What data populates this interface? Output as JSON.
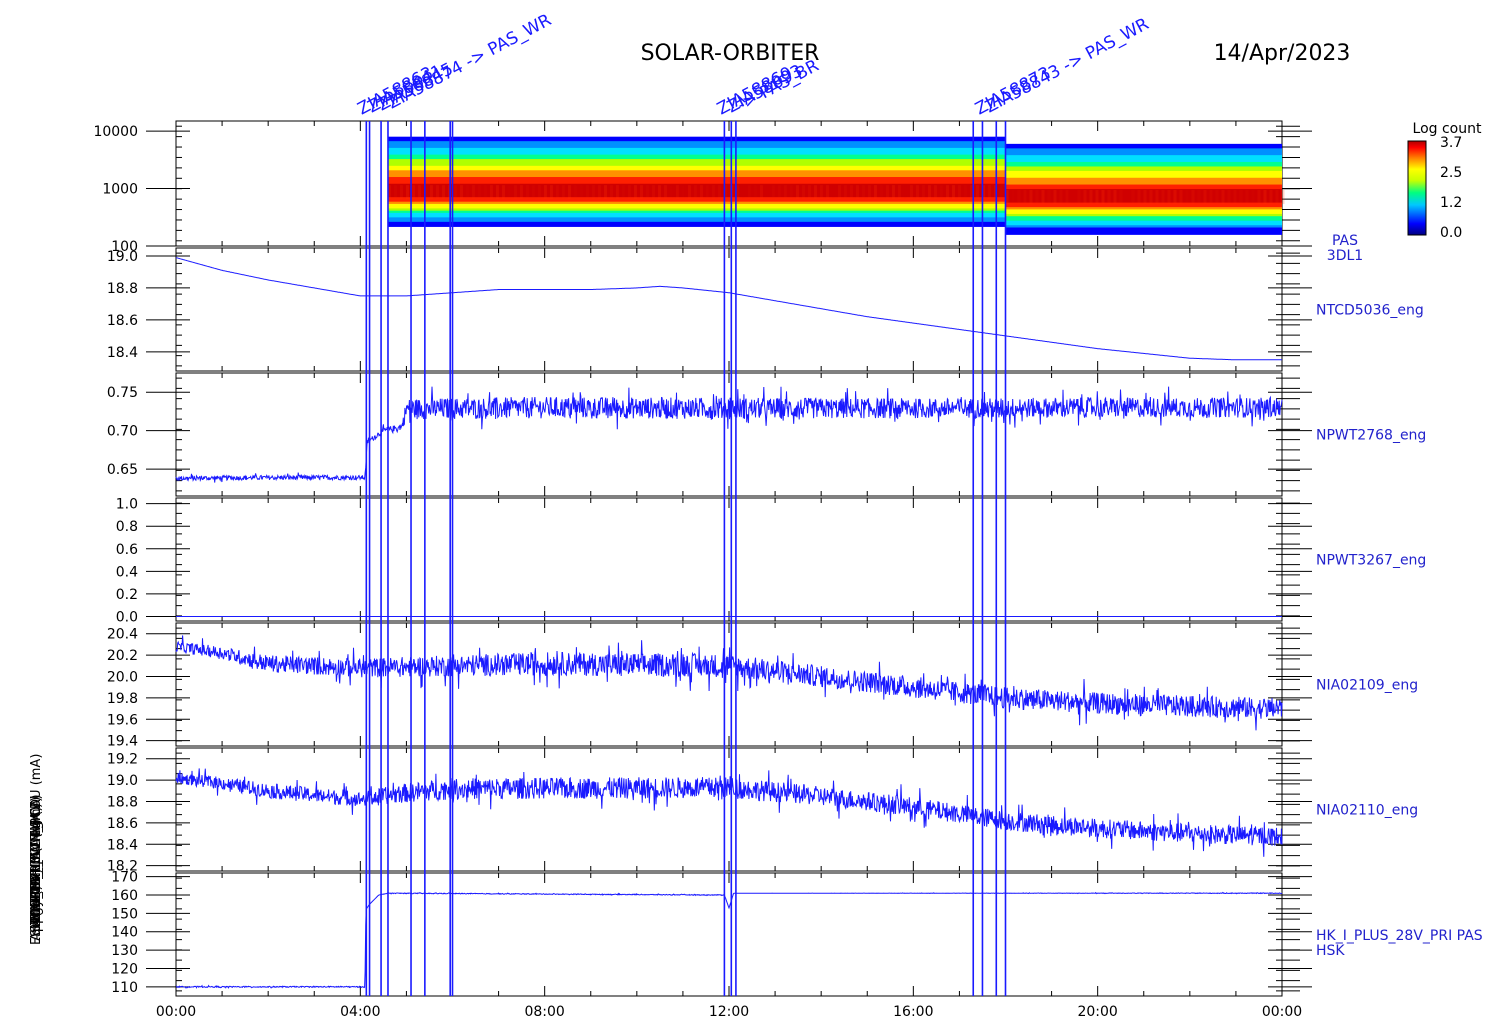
{
  "header": {
    "mission": "SOLAR-ORBITER",
    "date": "14/Apr/2023"
  },
  "colors": {
    "series": "#1a1aff",
    "axis": "#000000",
    "panel_label": "#2222cc"
  },
  "colorbar": {
    "title": "Log count",
    "ticks": [
      "3.7",
      "2.5",
      "1.2",
      "0.0"
    ],
    "range": [
      0.0,
      3.7
    ]
  },
  "markers": [
    {
      "time": 4.13
    },
    {
      "time": 4.2
    },
    {
      "time": 4.45
    },
    {
      "time": 4.6
    },
    {
      "time": 5.1
    },
    {
      "time": 5.4
    },
    {
      "time": 5.95
    },
    {
      "time": 6.0
    },
    {
      "time": 11.9
    },
    {
      "time": 12.05
    },
    {
      "time": 12.15
    },
    {
      "time": 17.3
    },
    {
      "time": 17.5
    },
    {
      "time": 17.8
    },
    {
      "time": 18.0
    }
  ],
  "marker_labels": [
    {
      "anchor_time": 4.2,
      "lines": [
        "ZIA58863",
        "ZIA58841",
        "ZIA58845",
        "ZIA58874 -> PAS_WR"
      ]
    },
    {
      "anchor_time": 12.0,
      "lines": [
        "ZIA58869",
        "ZIA58893",
        "-> PAS_BR"
      ]
    },
    {
      "anchor_time": 17.6,
      "lines": [
        "ZIA58873",
        "ZIA58843 -> PAS_WR"
      ]
    }
  ],
  "chart_data": [
    {
      "type": "heatmap",
      "panel": "PAS 3DL1",
      "label_lines": [
        "PAS",
        "3DL1"
      ],
      "ylabel": "Energy (eV)",
      "yscale": "log",
      "ylim": [
        100,
        15000
      ],
      "yticks": [
        "10000",
        "1000",
        "100"
      ],
      "ytick_values": [
        10000,
        1000,
        100
      ],
      "x_range_hours": [
        0,
        24
      ],
      "segments": [
        {
          "start": 4.6,
          "end": 18.0,
          "emin": 220,
          "emax": 8000,
          "peak": 850
        },
        {
          "start": 18.0,
          "end": 24.0,
          "emin": 160,
          "emax": 6000,
          "peak": 700
        }
      ]
    },
    {
      "type": "line",
      "panel": "NTCD5036_eng",
      "label": "NTCD5036_eng",
      "ylim": [
        18.28,
        19.05
      ],
      "yticks": [
        "19.0",
        "18.8",
        "18.6",
        "18.4"
      ],
      "ytick_values": [
        19.0,
        18.8,
        18.6,
        18.4
      ],
      "x": [
        0,
        1,
        2,
        3,
        4,
        5,
        6,
        7,
        8,
        9,
        10,
        10.5,
        11,
        12,
        13,
        14,
        15,
        16,
        17,
        18,
        19,
        20,
        21,
        22,
        23,
        24
      ],
      "y": [
        18.99,
        18.91,
        18.85,
        18.8,
        18.75,
        18.75,
        18.77,
        18.79,
        18.79,
        18.79,
        18.8,
        18.81,
        18.8,
        18.77,
        18.72,
        18.67,
        18.62,
        18.58,
        18.54,
        18.5,
        18.46,
        18.42,
        18.39,
        18.36,
        18.35,
        18.35
      ]
    },
    {
      "type": "line",
      "panel": "NPWT2768_eng",
      "label": "NPWT2768_eng",
      "ylim": [
        0.615,
        0.775
      ],
      "yticks": [
        "0.75",
        "0.70",
        "0.65"
      ],
      "ytick_values": [
        0.75,
        0.7,
        0.65
      ],
      "x": [
        0,
        2,
        4.1,
        4.15,
        4.5,
        4.9,
        5.0,
        8,
        12,
        16,
        20,
        24
      ],
      "y": [
        0.638,
        0.639,
        0.639,
        0.685,
        0.7,
        0.705,
        0.728,
        0.73,
        0.729,
        0.729,
        0.73,
        0.73
      ],
      "noise": [
        0.003,
        0.003,
        0.003,
        0.003,
        0.004,
        0.004,
        0.014,
        0.014,
        0.014,
        0.013,
        0.013,
        0.013
      ]
    },
    {
      "type": "line",
      "panel": "NPWT3267_eng",
      "label": "NPWT3267_eng",
      "ylim": [
        -0.04,
        1.05
      ],
      "yticks": [
        "1.0",
        "0.8",
        "0.6",
        "0.4",
        "0.2",
        "0.0"
      ],
      "ytick_values": [
        1.0,
        0.8,
        0.6,
        0.4,
        0.2,
        0.0
      ],
      "x": [
        0,
        24
      ],
      "y": [
        0.0,
        0.0
      ],
      "noise": [
        0,
        0
      ]
    },
    {
      "type": "line",
      "panel": "NIA02109_eng",
      "label": "NIA02109_eng",
      "ylim": [
        19.35,
        20.5
      ],
      "yticks": [
        "20.4",
        "20.2",
        "20.0",
        "19.8",
        "19.6",
        "19.4"
      ],
      "ytick_values": [
        20.4,
        20.2,
        20.0,
        19.8,
        19.6,
        19.4
      ],
      "x": [
        0,
        1,
        2,
        4,
        6,
        8,
        12,
        14,
        16,
        18,
        20,
        22,
        24
      ],
      "y": [
        20.28,
        20.22,
        20.12,
        20.08,
        20.1,
        20.12,
        20.1,
        20.0,
        19.9,
        19.8,
        19.75,
        19.72,
        19.7
      ],
      "noise": [
        0.05,
        0.06,
        0.08,
        0.09,
        0.1,
        0.11,
        0.11,
        0.1,
        0.1,
        0.1,
        0.1,
        0.1,
        0.1
      ]
    },
    {
      "type": "line",
      "panel": "NIA02110_eng",
      "label": "NIA02110_eng",
      "ylim": [
        18.15,
        19.3
      ],
      "yticks": [
        "19.2",
        "19.0",
        "18.8",
        "18.6",
        "18.4",
        "18.2"
      ],
      "ytick_values": [
        19.2,
        19.0,
        18.8,
        18.6,
        18.4,
        18.2
      ],
      "x": [
        0,
        1,
        2,
        4,
        5,
        6,
        12,
        14,
        16,
        18,
        20,
        22,
        24
      ],
      "y": [
        19.02,
        18.97,
        18.9,
        18.82,
        18.88,
        18.92,
        18.93,
        18.85,
        18.75,
        18.62,
        18.55,
        18.5,
        18.47
      ],
      "noise": [
        0.05,
        0.06,
        0.07,
        0.07,
        0.09,
        0.1,
        0.1,
        0.09,
        0.09,
        0.09,
        0.09,
        0.09,
        0.09
      ]
    },
    {
      "type": "line",
      "panel": "HK_I_PLUS_28V_PRI PAS HSK",
      "label_lines": [
        "HK_I_PLUS_28V_PRI PAS",
        "HSK"
      ],
      "ylabel": "(mA)",
      "ylim": [
        105,
        172
      ],
      "yticks": [
        "170",
        "160",
        "150",
        "140",
        "130",
        "120",
        "110"
      ],
      "ytick_values": [
        170,
        160,
        150,
        140,
        130,
        120,
        110
      ],
      "x": [
        0,
        4.1,
        4.12,
        4.2,
        4.4,
        4.6,
        11.9,
        12.0,
        12.1,
        24
      ],
      "y": [
        110,
        110,
        152,
        155,
        160,
        161,
        160,
        153,
        161,
        161
      ],
      "noise": [
        0.3,
        0.3,
        0,
        0,
        0,
        0.2,
        0.2,
        0,
        0,
        0.2
      ]
    }
  ],
  "x_axis": {
    "ticks": [
      "00:00",
      "04:00",
      "08:00",
      "12:00",
      "16:00",
      "20:00",
      "00:00"
    ],
    "tick_hours": [
      0,
      4,
      8,
      12,
      16,
      20,
      24
    ]
  },
  "y_axis_text": {
    "overlapping": [
      "Energy (eV)",
      "Approx Temp (Deg C)",
      "SWA-EAS-RSW TM (V)",
      "SWA-BDPU 5V (V)",
      "MONITOR_ICA4 (mA)",
      "THERM_ICA4 (mA)",
      "SIO_HK_IMON_PCDU (mA)",
      "(mA)"
    ]
  }
}
